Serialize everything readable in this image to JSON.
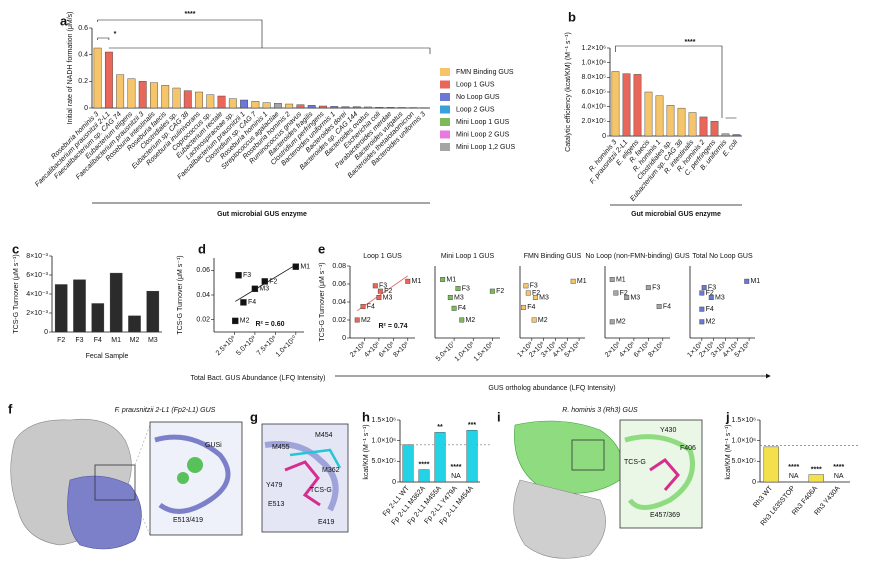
{
  "chart_data": [
    {
      "panel": "a",
      "type": "bar",
      "ylabel": "Initial rate of NADH formation (μM/s)",
      "xlabel": "Gut microbial GUS enzyme",
      "categories": [
        "Roseburia hominis 3",
        "Faecalibacterium prausnitzii 2-L1",
        "Faecalibacterium sp. CAG 74",
        "Eubacterium eligens",
        "Faecalibacterium prausnitzii 3",
        "Roseburia intestinalis",
        "Roseburia faecis",
        "Clostridiales sp.",
        "Eubacterium sp. CAG 38",
        "Roseburia inulinivorans",
        "Coprococcus sp.",
        "Eubacterium rectale",
        "Lachnospiraceae sp.",
        "Faecalibacterium prausnitzii 1",
        "Clostridium sp. CAG 7",
        "Roseburia hominis 1",
        "Streptococcus agalactiae",
        "Roseburia hominis 2",
        "Ruminococcus gnavus",
        "Bacteroides fragilis",
        "Clostridium perfringens",
        "Bacteroides uniformis 1",
        "Bacteroides dorei",
        "Bacteroides sp. CAG 144",
        "Bacteroides ovatus",
        "Escherichia coli",
        "Parabacteroides merdae",
        "Bacteroides vulgatus",
        "Bacteroides thetaiotaomicron",
        "Bacteroides uniformis 3"
      ],
      "values": [
        0.45,
        0.42,
        0.25,
        0.22,
        0.2,
        0.19,
        0.17,
        0.15,
        0.13,
        0.12,
        0.1,
        0.09,
        0.07,
        0.06,
        0.05,
        0.04,
        0.035,
        0.03,
        0.025,
        0.02,
        0.015,
        0.012,
        0.01,
        0.01,
        0.008,
        0.006,
        0.005,
        0.004,
        0.003,
        0.002
      ],
      "colors": [
        "#f6c56b",
        "#e8675a",
        "#f6c56b",
        "#f6c56b",
        "#e8675a",
        "#f6c56b",
        "#f6c56b",
        "#f6c56b",
        "#e8675a",
        "#f6c56b",
        "#f6c56b",
        "#e8675a",
        "#f6c56b",
        "#6b78d6",
        "#f6c56b",
        "#f6c56b",
        "#a5a5a5",
        "#f6c56b",
        "#e8675a",
        "#6b78d6",
        "#e8675a",
        "#6b78d6",
        "#6b78d6",
        "#6b78d6",
        "#7dbb5a",
        "#e8675a",
        "#3aa0d8",
        "#e879e0",
        "#a5a5a5",
        "#a5a5a5"
      ],
      "ylim": [
        0,
        0.6
      ],
      "yticks": [
        0,
        0.2,
        0.4,
        0.6
      ],
      "annotations": [
        "****",
        "*"
      ],
      "legend": [
        {
          "name": "FMN Binding GUS",
          "color": "#f6c56b"
        },
        {
          "name": "Loop 1 GUS",
          "color": "#e8675a"
        },
        {
          "name": "No Loop GUS",
          "color": "#6b78d6"
        },
        {
          "name": "Loop 2 GUS",
          "color": "#3aa0d8"
        },
        {
          "name": "Mini Loop 1 GUS",
          "color": "#7dbb5a"
        },
        {
          "name": "Mini Loop 2 GUS",
          "color": "#e879e0"
        },
        {
          "name": "Mini Loop 1,2 GUS",
          "color": "#a5a5a5"
        }
      ]
    },
    {
      "panel": "b",
      "type": "bar",
      "ylabel": "Catalytic efficiency (kcat/KM) (M⁻¹ s⁻¹)",
      "xlabel": "Gut microbial GUS enzyme",
      "categories": [
        "R. hominis 3",
        "F. prausnitzii 2-L1",
        "E. eligens",
        "R. faecis",
        "R. hominis 1",
        "Clostridiales sp.",
        "Eubacterium sp. CAG 38",
        "R. intestinalis",
        "R. hominis 2",
        "C. perfringens",
        "B. uniformis",
        "E. coli"
      ],
      "values": [
        880000,
        850000,
        840000,
        600000,
        550000,
        420000,
        380000,
        320000,
        260000,
        200000,
        30000,
        20000
      ],
      "colors": [
        "#f6c56b",
        "#e8675a",
        "#e8675a",
        "#f6c56b",
        "#f6c56b",
        "#f6c56b",
        "#f6c56b",
        "#f6c56b",
        "#e8675a",
        "#e8675a",
        "#a5a5a5",
        "#6b78d6"
      ],
      "ylim": [
        0,
        1200000
      ],
      "yticks": [
        0,
        {
          "value": 200000,
          "label": "2.0×10⁵"
        },
        {
          "value": 400000,
          "label": "4.0×10⁵"
        },
        {
          "value": 600000,
          "label": "6.0×10⁵"
        },
        {
          "value": 800000,
          "label": "8.0×10⁵"
        },
        {
          "value": 1000000,
          "label": "1.0×10⁶"
        },
        {
          "value": 1200000,
          "label": "1.2×10⁶"
        }
      ],
      "annotations": [
        "****"
      ]
    },
    {
      "panel": "c",
      "type": "bar",
      "ylabel": "TCS-G Turnover (μM s⁻¹)",
      "xlabel": "Fecal Sample",
      "categories": [
        "F2",
        "F3",
        "F4",
        "M1",
        "M2",
        "M3"
      ],
      "values": [
        0.005,
        0.0055,
        0.003,
        0.0062,
        0.0017,
        0.0043
      ],
      "color": "#2b2b2b",
      "ylim": [
        0,
        0.008
      ],
      "yticks": [
        0,
        {
          "value": 0.002,
          "label": "2×10⁻³"
        },
        {
          "value": 0.004,
          "label": "4×10⁻³"
        },
        {
          "value": 0.006,
          "label": "6×10⁻³"
        },
        {
          "value": 0.008,
          "label": "8×10⁻³"
        }
      ]
    },
    {
      "panel": "d",
      "type": "scatter",
      "ylabel": "TCS-G Turnover (μM s⁻¹)",
      "xlabel": "Total Bact. GUS Abundance (LFQ Intensity)",
      "point_labels": [
        "F3",
        "F2",
        "M3",
        "F4",
        "M2",
        "M1"
      ],
      "x": [
        3000000000,
        6200000000,
        5000000000,
        3600000000,
        2600000000,
        10000000000
      ],
      "values": [
        0.056,
        0.051,
        0.045,
        0.034,
        0.019,
        0.063
      ],
      "color": "#111111",
      "xlim": [
        0,
        11000000000
      ],
      "xticks": [
        {
          "value": 2500000000,
          "label": "2.5×10⁹"
        },
        {
          "value": 5000000000,
          "label": "5.0×10⁹"
        },
        {
          "value": 7500000000,
          "label": "7.5×10⁹"
        },
        {
          "value": 10000000000,
          "label": "1.0×10¹⁰"
        }
      ],
      "ylim": [
        0.01,
        0.07
      ],
      "yticks": [
        0.02,
        0.04,
        0.06
      ],
      "trendline": true,
      "annotations": [
        "R² = 0.60"
      ]
    },
    {
      "panel": "e",
      "type": "scatter",
      "title": "Loop 1 GUS",
      "ylabel": "TCS-G Turnover (μM s⁻¹)",
      "point_labels": [
        "F3",
        "F2",
        "M3",
        "M1",
        "F4",
        "M2"
      ],
      "x": [
        350000000,
        420000000,
        400000000,
        800000000,
        180000000,
        100000000
      ],
      "values": [
        0.058,
        0.052,
        0.045,
        0.063,
        0.035,
        0.02
      ],
      "color": "#e8675a",
      "xlim": [
        0,
        900000000
      ],
      "xticks": [
        {
          "value": 200000000,
          "label": "2×10⁸"
        },
        {
          "value": 400000000,
          "label": "4×10⁸"
        },
        {
          "value": 600000000,
          "label": "6×10⁸"
        },
        {
          "value": 800000000,
          "label": "8×10⁸"
        }
      ],
      "ylim": [
        0,
        0.08
      ],
      "yticks": [
        0,
        0.02,
        0.04,
        0.06,
        0.08
      ],
      "trendline": true,
      "annotations": [
        "R² = 0.74"
      ]
    },
    {
      "type": "scatter",
      "title": "Mini Loop 1 GUS",
      "point_labels": [
        "M1",
        "F3",
        "M3",
        "F4",
        "M2",
        "F2"
      ],
      "x": [
        20000000,
        60000000,
        40000000,
        50000000,
        70000000,
        150000000
      ],
      "values": [
        0.065,
        0.055,
        0.045,
        0.033,
        0.02,
        0.052
      ],
      "color": "#7dbb5a",
      "xlim": [
        0,
        170000000
      ],
      "xticks": [
        {
          "value": 50000000,
          "label": "5.0×10⁷"
        },
        {
          "value": 100000000,
          "label": "1.0×10⁸"
        },
        {
          "value": 150000000,
          "label": "1.5×10⁸"
        }
      ],
      "ylim": [
        0,
        0.08
      ]
    },
    {
      "type": "scatter",
      "title": "FMN Binding GUS",
      "xlabel": "GUS ortholog abundance (LFQ Intensity)",
      "point_labels": [
        "F3",
        "F2",
        "M3",
        "F4",
        "M2",
        "M1"
      ],
      "x": [
        500000000,
        700000000,
        1300000000,
        300000000,
        1200000000,
        4500000000
      ],
      "values": [
        0.058,
        0.05,
        0.045,
        0.034,
        0.02,
        0.063
      ],
      "color": "#f6c56b",
      "xlim": [
        0,
        5500000000
      ],
      "xticks": [
        {
          "value": 1000000000,
          "label": "1×10⁹"
        },
        {
          "value": 2000000000,
          "label": "2×10⁹"
        },
        {
          "value": 3000000000,
          "label": "3×10⁹"
        },
        {
          "value": 4000000000,
          "label": "4×10⁹"
        },
        {
          "value": 5000000000,
          "label": "5×10⁹"
        }
      ],
      "ylim": [
        0,
        0.08
      ]
    },
    {
      "type": "scatter",
      "title": "No Loop (non-FMN-binding) GUS",
      "point_labels": [
        "M1",
        "F2",
        "M3",
        "F3",
        "F4",
        "M2"
      ],
      "x": [
        100000000,
        150000000,
        300000000,
        600000000,
        750000000,
        100000000
      ],
      "values": [
        0.065,
        0.05,
        0.045,
        0.056,
        0.035,
        0.018
      ],
      "color": "#a5a5a5",
      "xlim": [
        0,
        900000000
      ],
      "xticks": [
        {
          "value": 200000000,
          "label": "2×10⁸"
        },
        {
          "value": 400000000,
          "label": "4×10⁸"
        },
        {
          "value": 600000000,
          "label": "6×10⁸"
        },
        {
          "value": 800000000,
          "label": "8×10⁸"
        }
      ],
      "ylim": [
        0,
        0.08
      ]
    },
    {
      "type": "scatter",
      "title": "Total No Loop GUS",
      "point_labels": [
        "F3",
        "F2",
        "M3",
        "F4",
        "M2",
        "M1"
      ],
      "x": [
        1200000000,
        1000000000,
        1800000000,
        1000000000,
        1000000000,
        4800000000
      ],
      "values": [
        0.056,
        0.05,
        0.045,
        0.032,
        0.018,
        0.063
      ],
      "color": "#6b78d6",
      "xlim": [
        0,
        5500000000
      ],
      "xticks": [
        {
          "value": 1000000000,
          "label": "1×10⁹"
        },
        {
          "value": 2000000000,
          "label": "2×10⁹"
        },
        {
          "value": 3000000000,
          "label": "3×10⁹"
        },
        {
          "value": 4000000000,
          "label": "4×10⁹"
        },
        {
          "value": 5000000000,
          "label": "5×10⁹"
        }
      ],
      "ylim": [
        0,
        0.08
      ]
    },
    {
      "panel": "h",
      "type": "bar",
      "ylabel": "kcat/KM (M⁻¹ s⁻¹)",
      "categories": [
        "Fp 2-L1 WT",
        "Fp 2-L1 M362A",
        "Fp 2-L1 M455A",
        "Fp 2-L1 Y479A",
        "Fp 2-L1 M454A"
      ],
      "values": [
        900000,
        300000,
        1200000,
        null,
        1250000
      ],
      "value_labels": [
        null,
        null,
        null,
        "NA",
        null
      ],
      "bar_annotations": [
        null,
        "****",
        "**",
        "****",
        "***"
      ],
      "color": "#22d3e6",
      "reference_line": 900000,
      "ylim": [
        0,
        1500000
      ],
      "yticks": [
        0,
        {
          "value": 500000,
          "label": "5.0×10⁵"
        },
        {
          "value": 1000000,
          "label": "1.0×10⁶"
        },
        {
          "value": 1500000,
          "label": "1.5×10⁶"
        }
      ]
    },
    {
      "panel": "j",
      "type": "bar",
      "ylabel": "kcat/KM (M⁻¹ s⁻¹)",
      "categories": [
        "Rh3 WT",
        "Rh3 L635STOP",
        "Rh3 F406A",
        "Rh3 Y430A"
      ],
      "values": [
        850000,
        null,
        180000,
        null
      ],
      "value_labels": [
        null,
        "NA",
        null,
        "NA"
      ],
      "bar_annotations": [
        null,
        "****",
        "****",
        "****"
      ],
      "color": "#f4e04d",
      "reference_line": 880000,
      "ylim": [
        0,
        1500000
      ],
      "yticks": [
        0,
        {
          "value": 500000,
          "label": "5.0×10⁵"
        },
        {
          "value": 1000000,
          "label": "1.0×10⁶"
        },
        {
          "value": 1500000,
          "label": "1.5×10⁶"
        }
      ]
    }
  ],
  "structures": [
    {
      "panel": "f",
      "title": "F. prausnitzii 2-L1 (Fp2-L1) GUS",
      "labels": [
        "GUSi",
        "E513/419"
      ]
    },
    {
      "panel": "g",
      "labels": [
        "M454",
        "M455",
        "M362",
        "Y479",
        "E513",
        "TCS-G",
        "E419"
      ]
    },
    {
      "panel": "i",
      "title": "R. hominis 3 (Rh3) GUS",
      "labels": [
        "Y430",
        "F406",
        "TCS-G",
        "E457/369"
      ]
    }
  ]
}
